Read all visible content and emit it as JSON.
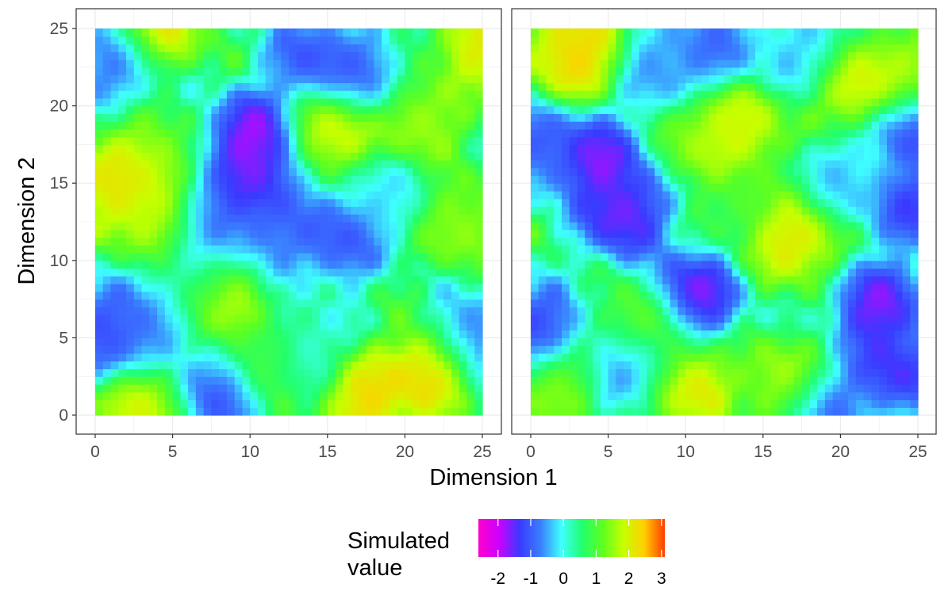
{
  "chart_data": {
    "type": "heatmap",
    "description_free": true,
    "panels": [
      {
        "xlim": [
          0,
          25
        ],
        "ylim": [
          0,
          25
        ],
        "x_ticks": [
          0,
          5,
          10,
          15,
          20,
          25
        ],
        "y_ticks": [
          0,
          5,
          10,
          15,
          20,
          25
        ],
        "approx_values": [
          {
            "x": 4,
            "y": 25,
            "v": 2.8
          },
          {
            "x": 1.5,
            "y": 23,
            "v": -1.3
          },
          {
            "x": 10.2,
            "y": 18,
            "v": -2.5
          },
          {
            "x": 10.3,
            "y": 15,
            "v": -2.0
          },
          {
            "x": 14,
            "y": 23,
            "v": -1.6
          },
          {
            "x": 17,
            "y": 22,
            "v": -1.3
          },
          {
            "x": 15.3,
            "y": 18.6,
            "v": 2.6
          },
          {
            "x": 1.2,
            "y": 15,
            "v": 2.7
          },
          {
            "x": 3.5,
            "y": 16.5,
            "v": 2.0
          },
          {
            "x": 4,
            "y": 13,
            "v": 2.4
          },
          {
            "x": 7.5,
            "y": 13,
            "v": -1.3
          },
          {
            "x": 11.5,
            "y": 12,
            "v": -1.2
          },
          {
            "x": 15.8,
            "y": 11.5,
            "v": -1.6
          },
          {
            "x": 8,
            "y": 7.5,
            "v": 2.2
          },
          {
            "x": 0.5,
            "y": 5.5,
            "v": -1.6
          },
          {
            "x": 3,
            "y": 5.5,
            "v": -1.2
          },
          {
            "x": 8,
            "y": 1.5,
            "v": -1.7
          },
          {
            "x": 3.2,
            "y": 0.5,
            "v": 2.4
          },
          {
            "x": 17.5,
            "y": 1,
            "v": 2.9
          },
          {
            "x": 21.5,
            "y": 2.8,
            "v": 3.0
          },
          {
            "x": 23.5,
            "y": 12.5,
            "v": 1.9
          },
          {
            "x": 21,
            "y": 19,
            "v": 2.0
          },
          {
            "x": 24.5,
            "y": 5,
            "v": -1.2
          },
          {
            "x": 19,
            "y": 14,
            "v": -0.3
          },
          {
            "x": 6.5,
            "y": 9,
            "v": -0.2
          },
          {
            "x": 13,
            "y": 4,
            "v": -0.4
          },
          {
            "x": 24.8,
            "y": 24,
            "v": 2.6
          },
          {
            "x": 11,
            "y": 3.5,
            "v": 1.8
          }
        ]
      },
      {
        "xlim": [
          0,
          25
        ],
        "ylim": [
          0,
          25
        ],
        "x_ticks": [
          0,
          5,
          10,
          15,
          20,
          25
        ],
        "y_ticks": [
          0,
          5,
          10,
          15,
          20,
          25
        ],
        "approx_values": [
          {
            "x": 2.8,
            "y": 23,
            "v": 2.9
          },
          {
            "x": 3,
            "y": 25,
            "v": 2.5
          },
          {
            "x": 21,
            "y": 21.5,
            "v": 2.7
          },
          {
            "x": 24,
            "y": 22,
            "v": 2.0
          },
          {
            "x": 4.5,
            "y": 16.5,
            "v": -2.3
          },
          {
            "x": 1,
            "y": 17.5,
            "v": -1.5
          },
          {
            "x": 6,
            "y": 13,
            "v": -2.3
          },
          {
            "x": 24.5,
            "y": 18.5,
            "v": -1.6
          },
          {
            "x": 24.8,
            "y": 13.5,
            "v": -1.8
          },
          {
            "x": 11,
            "y": 18,
            "v": 1.8
          },
          {
            "x": 13.5,
            "y": 18.5,
            "v": 2.5
          },
          {
            "x": 17,
            "y": 11.5,
            "v": 2.8
          },
          {
            "x": 10.5,
            "y": 7.7,
            "v": -2.4
          },
          {
            "x": 22.5,
            "y": 7,
            "v": -2.3
          },
          {
            "x": 23.5,
            "y": 3,
            "v": -2.0
          },
          {
            "x": 0.5,
            "y": 5.5,
            "v": -1.8
          },
          {
            "x": 7.5,
            "y": 5.5,
            "v": 2.3
          },
          {
            "x": 10,
            "y": 2,
            "v": 2.8
          },
          {
            "x": 16.5,
            "y": 2,
            "v": 2.2
          },
          {
            "x": 19,
            "y": 0.5,
            "v": -1.4
          },
          {
            "x": 18,
            "y": 23.5,
            "v": -0.6
          },
          {
            "x": 12,
            "y": 24,
            "v": -1.2
          },
          {
            "x": 8.5,
            "y": 22.5,
            "v": -1.0
          },
          {
            "x": 1.5,
            "y": 2,
            "v": 1.7
          },
          {
            "x": 20,
            "y": 15,
            "v": -0.5
          },
          {
            "x": 7,
            "y": 3.5,
            "v": -1.6
          },
          {
            "x": 14,
            "y": 14,
            "v": 1.2
          }
        ]
      }
    ],
    "xlabel": "Dimension 1",
    "ylabel": "Dimension 2",
    "legend": {
      "title_line1": "Simulated",
      "title_line2": "value",
      "range": [
        -2.6,
        3.1
      ],
      "ticks": [
        -2,
        -1,
        0,
        1,
        2,
        3
      ],
      "colors": [
        "#ff00cc",
        "#cc00ff",
        "#3a3aff",
        "#3a7fff",
        "#3fffff",
        "#21ff6e",
        "#5dff20",
        "#c6ff00",
        "#ffd000",
        "#ff3c00"
      ],
      "placement": "bottom"
    },
    "grid": true
  }
}
